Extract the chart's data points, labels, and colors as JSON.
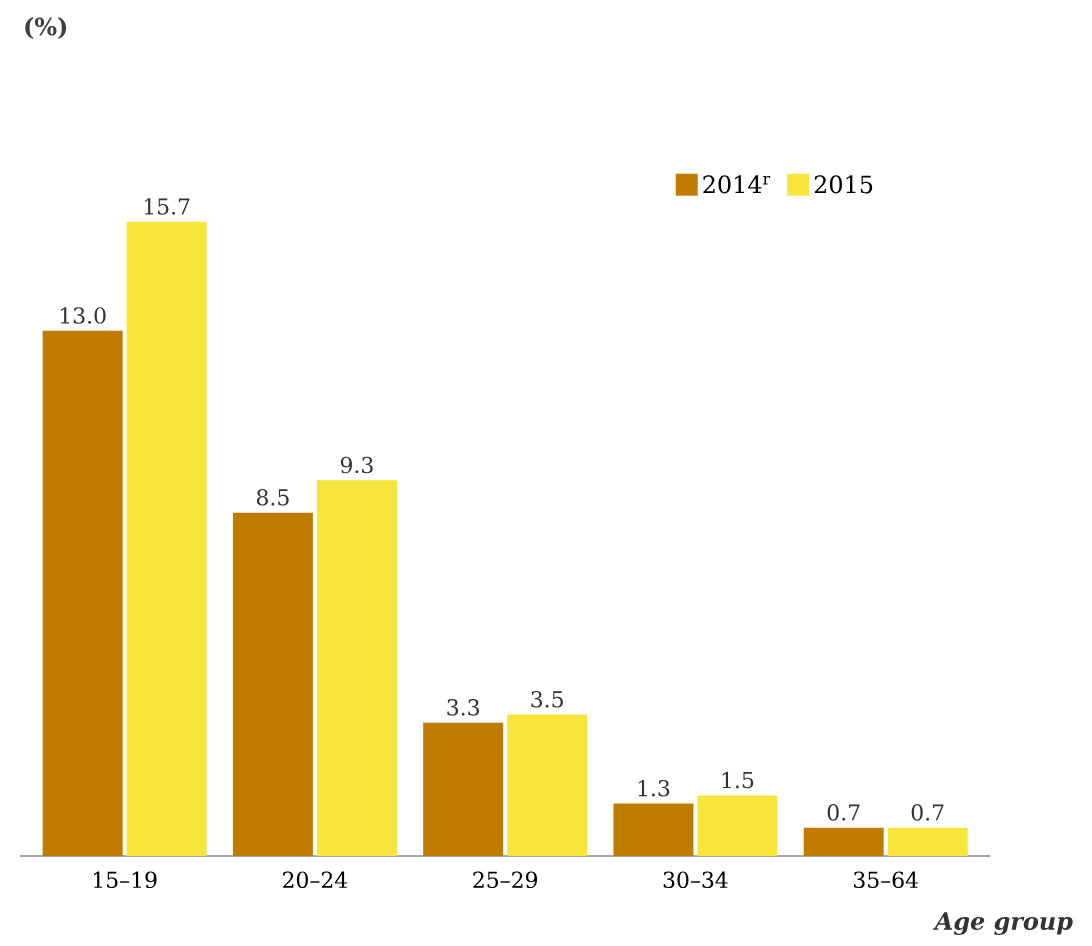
{
  "chart_data": {
    "type": "bar",
    "annotations": [
      "(%)"
    ],
    "xlabel": "Age group",
    "categories": [
      "15–19",
      "20–24",
      "25–29",
      "30–34",
      "35–64"
    ],
    "series": [
      {
        "name": "2014$^{r}$",
        "color": "#bf7c00",
        "values": [
          13.0,
          8.5,
          3.3,
          1.3,
          0.7
        ],
        "value_labels": [
          "13.0",
          "8.5",
          "3.3",
          "1.3",
          "0.7"
        ]
      },
      {
        "name": "2015",
        "color": "#f7e53b",
        "values": [
          15.7,
          9.3,
          3.5,
          1.5,
          0.7
        ],
        "value_labels": [
          "15.7",
          "9.3",
          "3.5",
          "1.5",
          "0.7"
        ]
      }
    ],
    "legend": "top right"
  }
}
